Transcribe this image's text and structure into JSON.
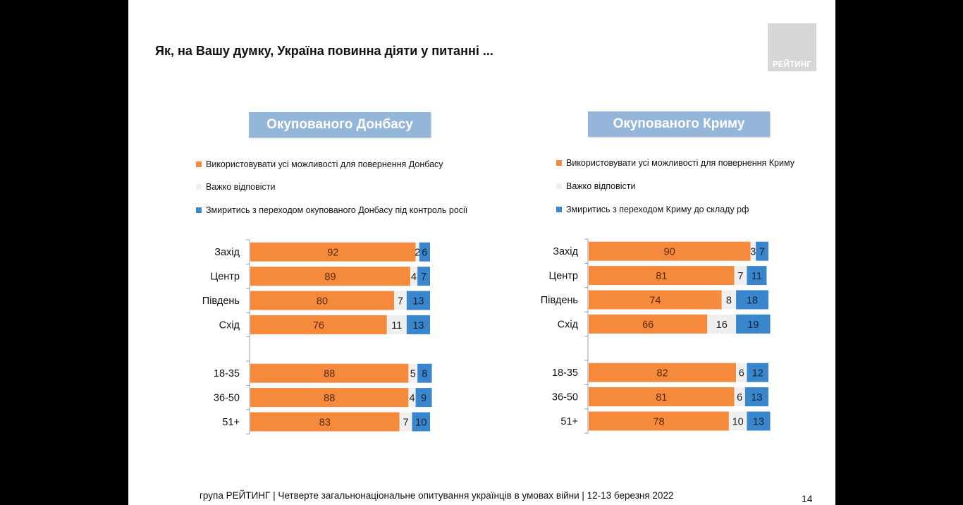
{
  "slide": {
    "title": "Як, на Вашу думку, Україна повинна діяти у питанні ...",
    "logo_text": "РЕЙТИНГ",
    "footer": "група РЕЙТИНГ | Четверте загальнонаціональне опитування українців в умовах війни | 12-13 березня 2022",
    "page_number": "14"
  },
  "colors": {
    "orange": "#f58a3c",
    "light_gray": "#efefef",
    "blue": "#3a86cc",
    "header_bg": "#94b6d8"
  },
  "chart_data": [
    {
      "type": "bar",
      "orientation": "horizontal-stacked-100",
      "title": "Окупованого Донбасу",
      "legend": [
        "Використовувати усі можливості для повернення Донбасу",
        "Важко відповісти",
        "Змиритись з переходом окупованого Донбасу під контроль росії"
      ],
      "categories": [
        "Захід",
        "Центр",
        "Південь",
        "Схід",
        "",
        "18-35",
        "36-50",
        "51+"
      ],
      "series": [
        {
          "name": "Використовувати усі можливості для повернення Донбасу",
          "color": "#f58a3c",
          "values": [
            92,
            89,
            80,
            76,
            null,
            88,
            88,
            83
          ]
        },
        {
          "name": "Важко відповісти",
          "color": "#efefef",
          "values": [
            2,
            4,
            7,
            11,
            null,
            5,
            4,
            7
          ]
        },
        {
          "name": "Змиритись з переходом окупованого Донбасу під контроль росії",
          "color": "#3a86cc",
          "values": [
            6,
            7,
            13,
            13,
            null,
            8,
            9,
            10
          ]
        }
      ],
      "xlim": [
        0,
        100
      ],
      "legend_position": "top"
    },
    {
      "type": "bar",
      "orientation": "horizontal-stacked-100",
      "title": "Окупованого Криму",
      "legend": [
        "Використовувати усі можливості для повернення Криму",
        "Важко відповісти",
        "Змиритись з переходом Криму до складу рф"
      ],
      "categories": [
        "Захід",
        "Центр",
        "Південь",
        "Схід",
        "",
        "18-35",
        "36-50",
        "51+"
      ],
      "series": [
        {
          "name": "Використовувати усі можливості для повернення Криму",
          "color": "#f58a3c",
          "values": [
            90,
            81,
            74,
            66,
            null,
            82,
            81,
            78
          ]
        },
        {
          "name": "Важко відповісти",
          "color": "#efefef",
          "values": [
            3,
            7,
            8,
            16,
            null,
            6,
            6,
            10
          ]
        },
        {
          "name": "Змиритись з переходом Криму до складу рф",
          "color": "#3a86cc",
          "values": [
            7,
            11,
            18,
            19,
            null,
            12,
            13,
            13
          ]
        }
      ],
      "xlim": [
        0,
        100
      ],
      "legend_position": "top"
    }
  ]
}
